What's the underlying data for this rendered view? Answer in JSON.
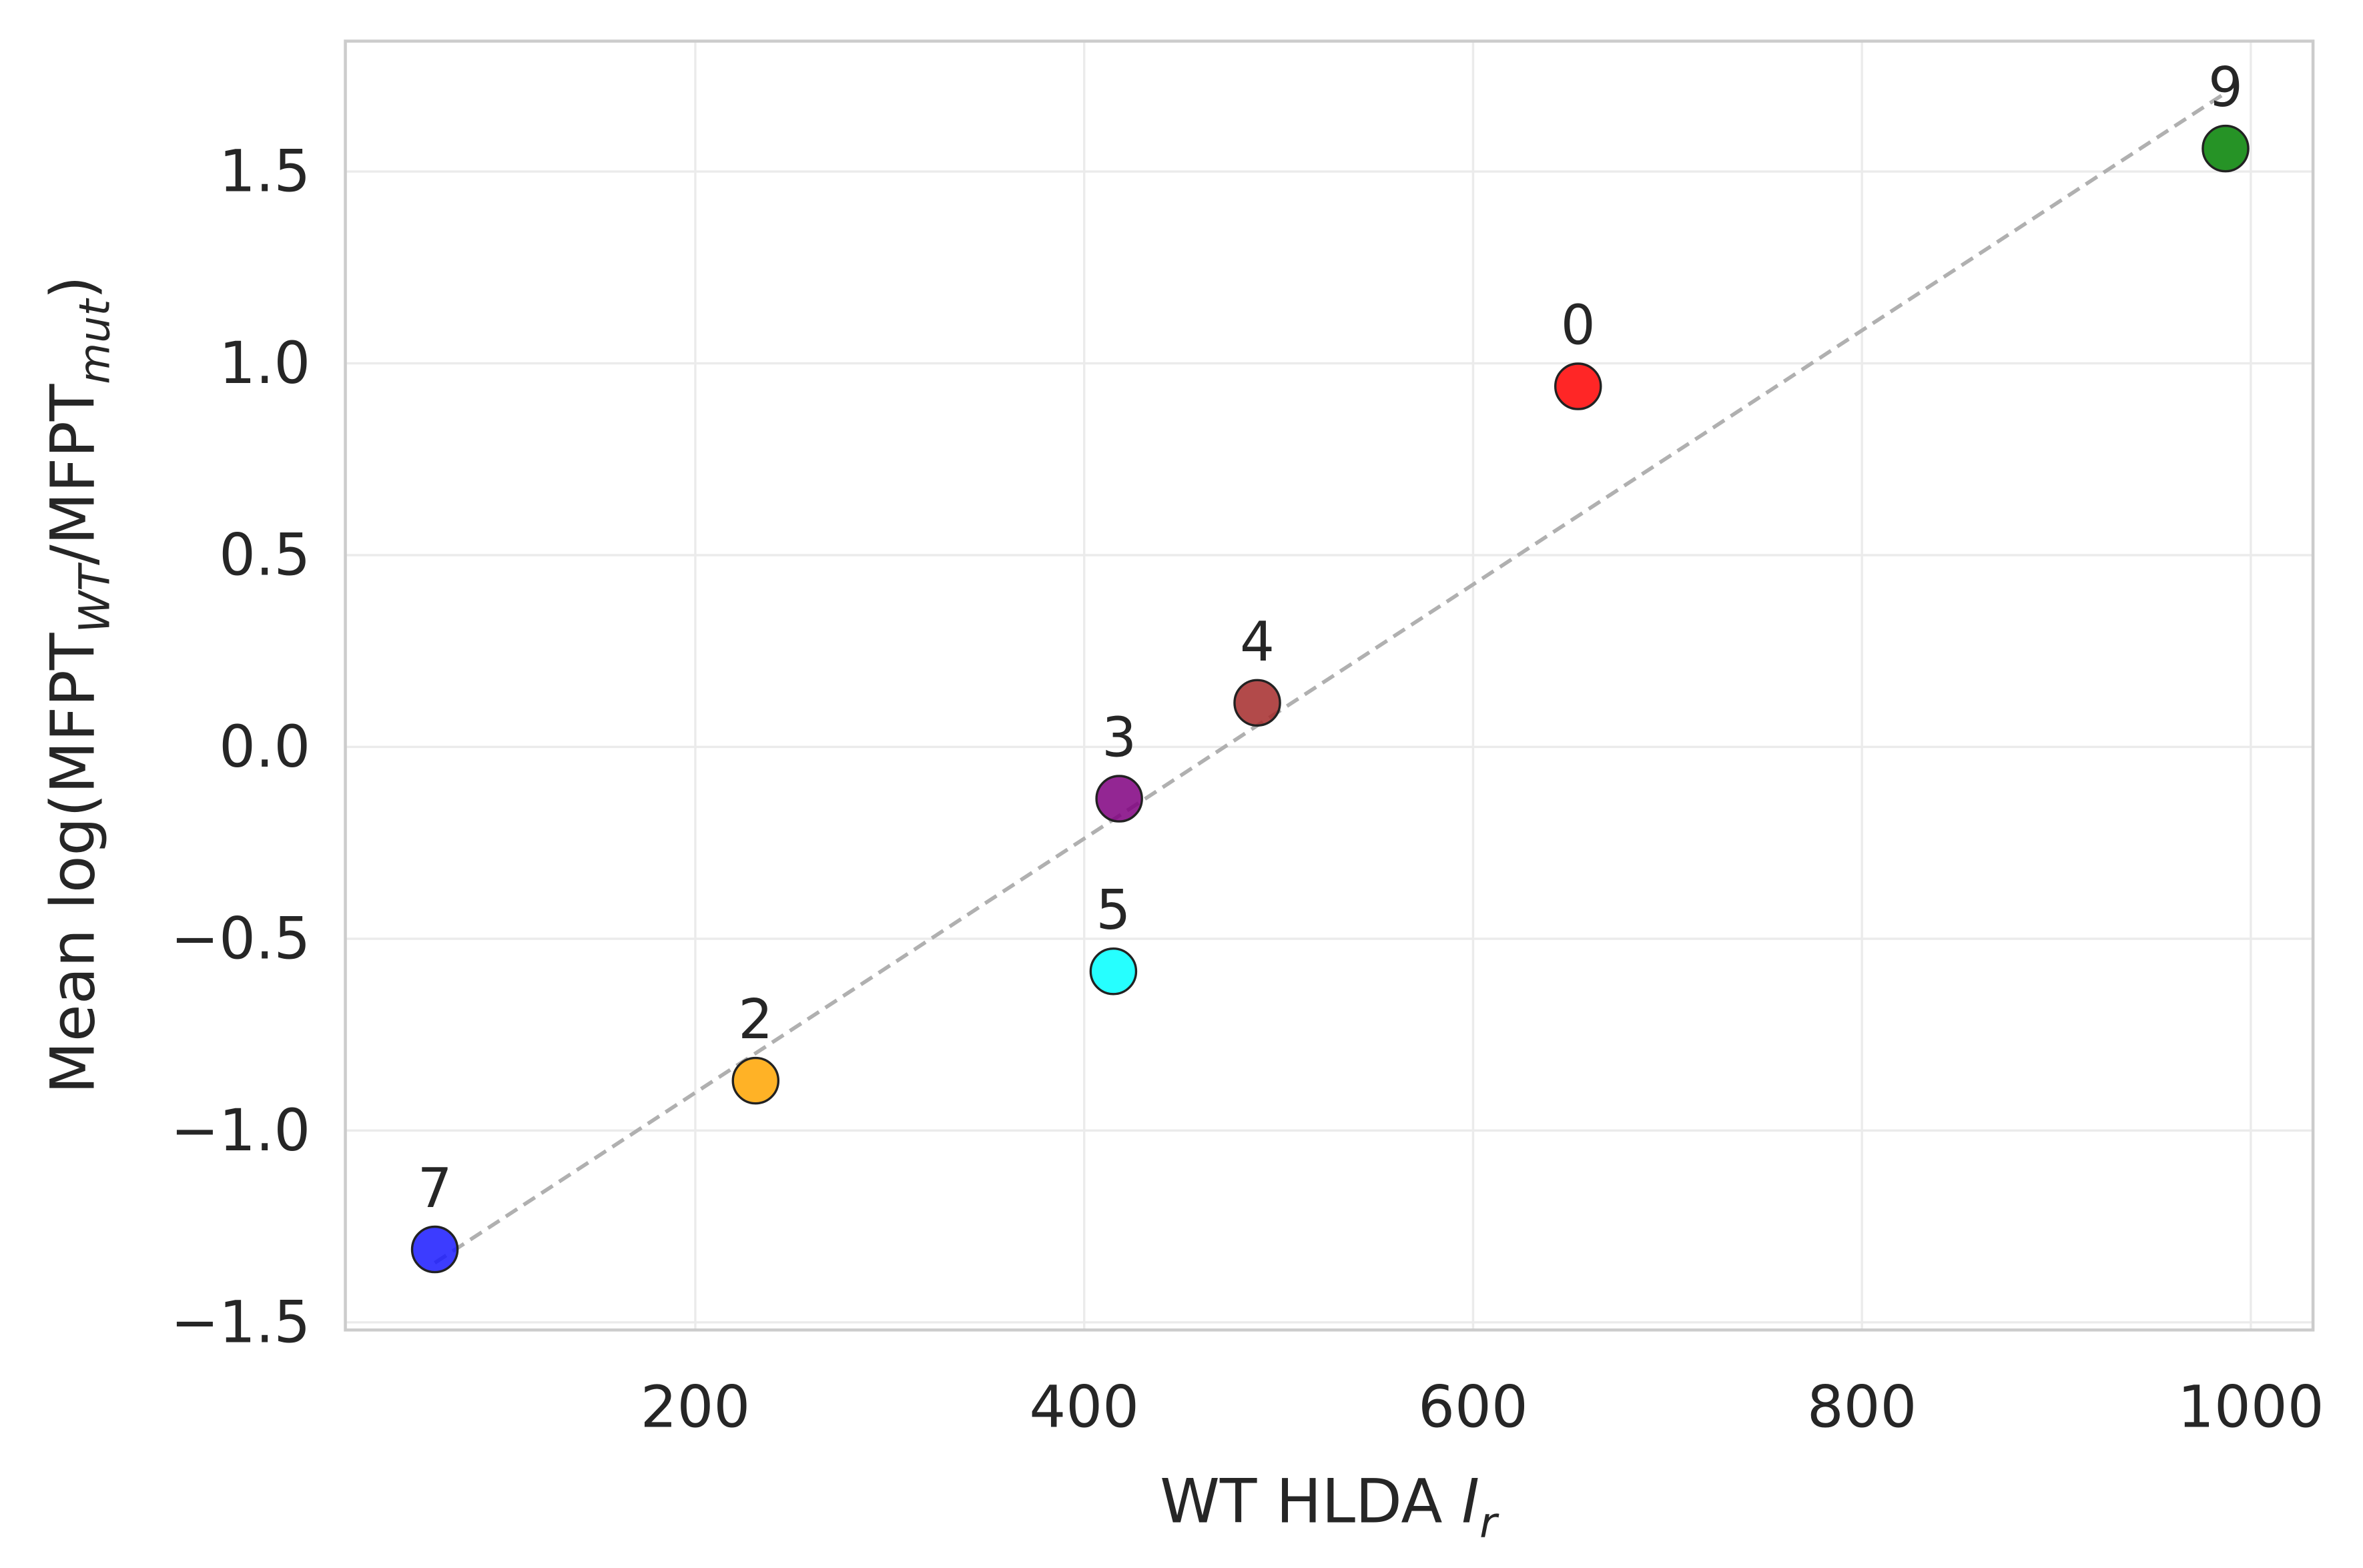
{
  "chart_data": {
    "type": "scatter",
    "title": "",
    "xlabel": {
      "main": "WT HLDA ",
      "italic": "I",
      "sub": "r"
    },
    "ylabel": {
      "prefix": "Mean log(MFPT",
      "sub1": "WT",
      "mid": "/MFPT",
      "sub2": "mut",
      "suffix": ")"
    },
    "xlim": [
      20,
      1032
    ],
    "ylim": [
      -1.52,
      1.84
    ],
    "xticks": [
      200,
      400,
      600,
      800,
      1000
    ],
    "xtick_labels": [
      "200",
      "400",
      "600",
      "800",
      "1000"
    ],
    "yticks": [
      -1.5,
      -1.0,
      -0.5,
      0.0,
      0.5,
      1.0,
      1.5
    ],
    "ytick_labels": [
      "−1.5",
      "−1.0",
      "−0.5",
      "0.0",
      "0.5",
      "1.0",
      "1.5"
    ],
    "grid": true,
    "points": [
      {
        "label": "7",
        "x": 66,
        "y": -1.31,
        "color": "#1a1aff"
      },
      {
        "label": "2",
        "x": 231,
        "y": -0.87,
        "color": "#ffa500"
      },
      {
        "label": "5",
        "x": 415,
        "y": -0.585,
        "color": "#00ffff"
      },
      {
        "label": "3",
        "x": 418,
        "y": -0.135,
        "color": "#800080"
      },
      {
        "label": "4",
        "x": 489,
        "y": 0.115,
        "color": "#a52a2a"
      },
      {
        "label": "0",
        "x": 654,
        "y": 0.94,
        "color": "#ff0000"
      },
      {
        "label": "9",
        "x": 987,
        "y": 1.56,
        "color": "#008000"
      }
    ],
    "trend_line": {
      "x": [
        66,
        987
      ],
      "y": [
        -1.345,
        1.705
      ],
      "style": "dashed",
      "color": "#b0b0b0"
    }
  }
}
